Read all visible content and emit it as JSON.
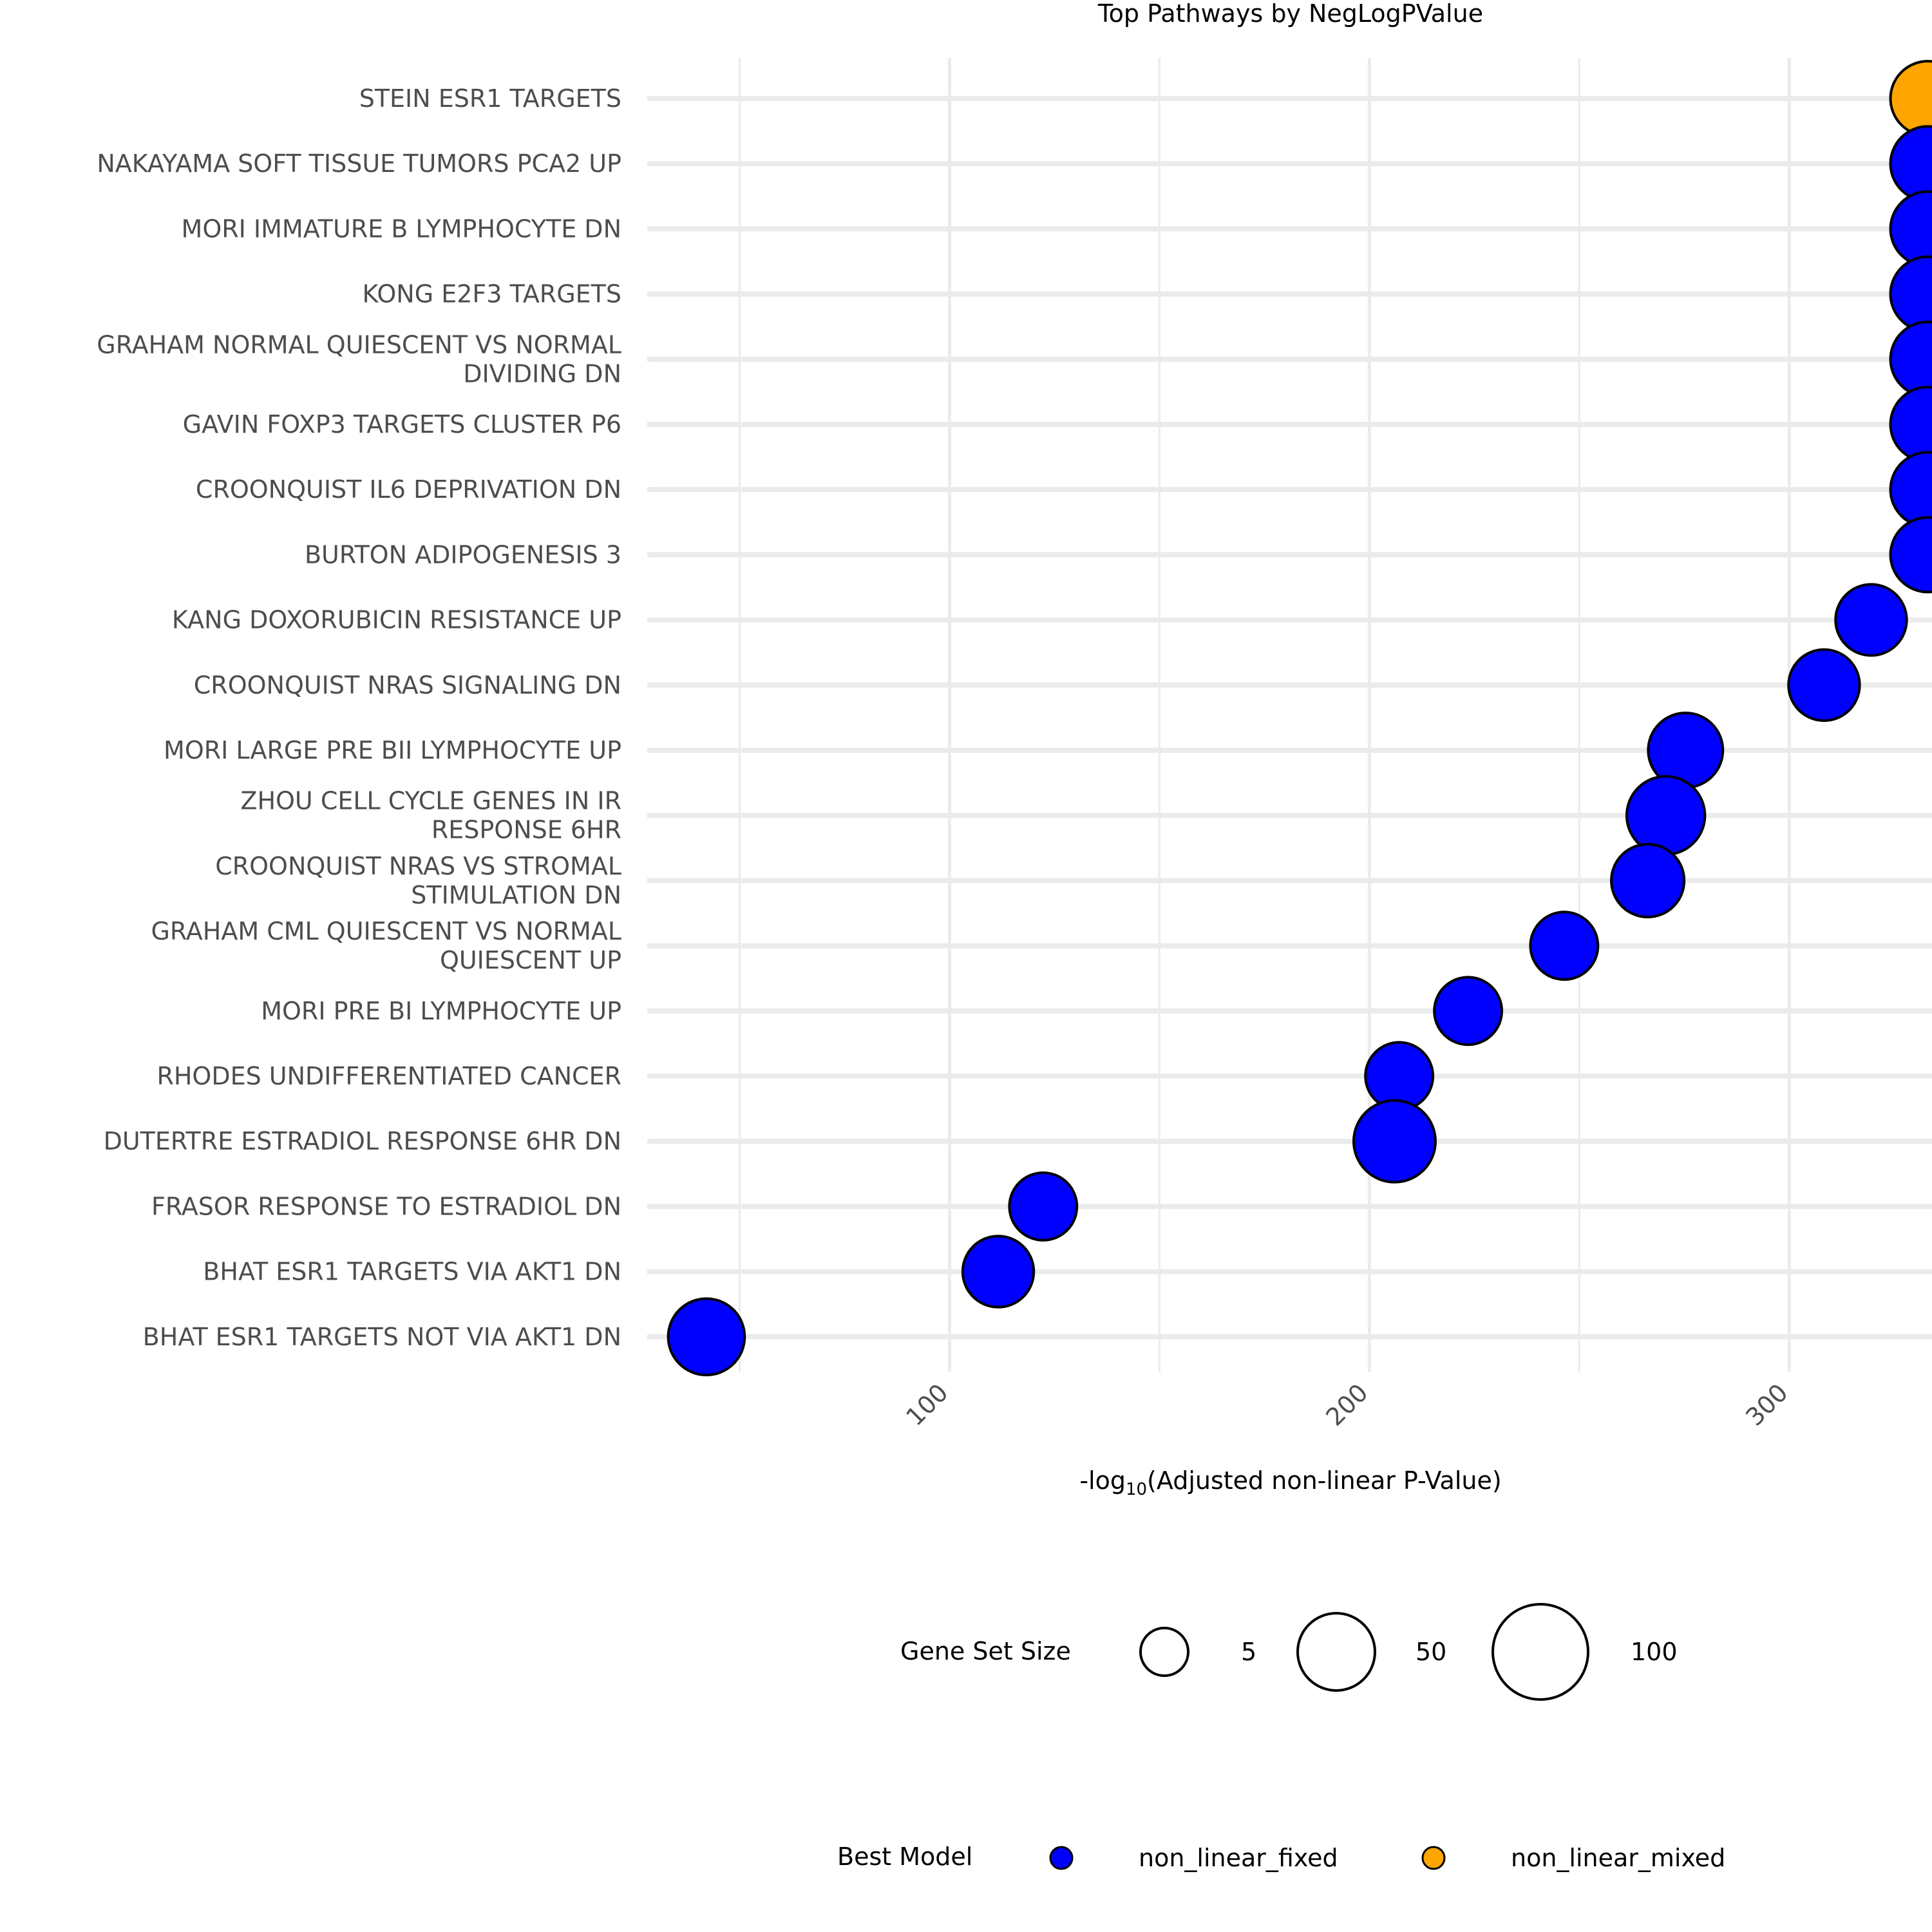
{
  "chart_data": {
    "type": "scatter",
    "title": "Top Pathways by NegLogPValue",
    "xlabel": {
      "prefix": "-log",
      "sub": "10",
      "suffix": "(Adjusted non-linear P-Value)"
    },
    "ylabel": "",
    "xlim": [
      28,
      334
    ],
    "xticks": [
      100,
      200,
      300
    ],
    "grid": true,
    "categories": [
      "STEIN ESR1 TARGETS",
      "NAKAYAMA SOFT TISSUE TUMORS PCA2 UP",
      "MORI IMMATURE B LYMPHOCYTE DN",
      "KONG E2F3 TARGETS",
      "GRAHAM NORMAL QUIESCENT VS NORMAL DIVIDING DN",
      "GAVIN FOXP3 TARGETS CLUSTER P6",
      "CROONQUIST IL6 DEPRIVATION DN",
      "BURTON ADIPOGENESIS 3",
      "KANG DOXORUBICIN RESISTANCE UP",
      "CROONQUIST NRAS SIGNALING DN",
      "MORI LARGE PRE BII LYMPHOCYTE UP",
      "ZHOU CELL CYCLE GENES IN IR RESPONSE 6HR",
      "CROONQUIST NRAS VS STROMAL STIMULATION DN",
      "GRAHAM CML QUIESCENT VS NORMAL QUIESCENT UP",
      "MORI PRE BI LYMPHOCYTE UP",
      "RHODES UNDIFFERENTIATED CANCER",
      "DUTERTRE ESTRADIOL RESPONSE 6HR DN",
      "FRASOR RESPONSE TO ESTRADIOL DN",
      "BHAT ESR1 TARGETS VIA AKT1 DN",
      "BHAT ESR1 TARGETS NOT VIA AKT1 DN"
    ],
    "category_lines": [
      [
        "STEIN ESR1 TARGETS"
      ],
      [
        "NAKAYAMA SOFT TISSUE TUMORS PCA2 UP"
      ],
      [
        "MORI IMMATURE B LYMPHOCYTE DN"
      ],
      [
        "KONG E2F3 TARGETS"
      ],
      [
        "GRAHAM NORMAL QUIESCENT VS NORMAL",
        "DIVIDING DN"
      ],
      [
        "GAVIN FOXP3 TARGETS CLUSTER P6"
      ],
      [
        "CROONQUIST IL6 DEPRIVATION DN"
      ],
      [
        "BURTON ADIPOGENESIS 3"
      ],
      [
        "KANG DOXORUBICIN RESISTANCE UP"
      ],
      [
        "CROONQUIST NRAS SIGNALING DN"
      ],
      [
        "MORI LARGE PRE BII LYMPHOCYTE UP"
      ],
      [
        "ZHOU CELL CYCLE GENES IN IR",
        "RESPONSE 6HR"
      ],
      [
        "CROONQUIST NRAS VS STROMAL",
        "STIMULATION DN"
      ],
      [
        "GRAHAM CML QUIESCENT VS NORMAL",
        "QUIESCENT UP"
      ],
      [
        "MORI PRE BI LYMPHOCYTE UP"
      ],
      [
        "RHODES UNDIFFERENTIATED CANCER"
      ],
      [
        "DUTERTRE ESTRADIOL RESPONSE 6HR DN"
      ],
      [
        "FRASOR RESPONSE TO ESTRADIOL DN"
      ],
      [
        "BHAT ESR1 TARGETS VIA AKT1 DN"
      ],
      [
        "BHAT ESR1 TARGETS NOT VIA AKT1 DN"
      ]
    ],
    "points": [
      {
        "pathway": "STEIN ESR1 TARGETS",
        "x": 333,
        "size": 42,
        "model": "non_linear_mixed"
      },
      {
        "pathway": "NAKAYAMA SOFT TISSUE TUMORS PCA2 UP",
        "x": 333,
        "size": 42,
        "model": "non_linear_fixed"
      },
      {
        "pathway": "MORI IMMATURE B LYMPHOCYTE DN",
        "x": 333,
        "size": 42,
        "model": "non_linear_fixed"
      },
      {
        "pathway": "KONG E2F3 TARGETS",
        "x": 333,
        "size": 42,
        "model": "non_linear_fixed"
      },
      {
        "pathway": "GRAHAM NORMAL QUIESCENT VS NORMAL DIVIDING DN",
        "x": 333,
        "size": 42,
        "model": "non_linear_fixed"
      },
      {
        "pathway": "GAVIN FOXP3 TARGETS CLUSTER P6",
        "x": 333,
        "size": 42,
        "model": "non_linear_fixed"
      },
      {
        "pathway": "CROONQUIST IL6 DEPRIVATION DN",
        "x": 333,
        "size": 42,
        "model": "non_linear_fixed"
      },
      {
        "pathway": "BURTON ADIPOGENESIS 3",
        "x": 333,
        "size": 42,
        "model": "non_linear_fixed"
      },
      {
        "pathway": "KANG DOXORUBICIN RESISTANCE UP",
        "x": 319.5,
        "size": 40,
        "model": "non_linear_fixed"
      },
      {
        "pathway": "CROONQUIST NRAS SIGNALING DN",
        "x": 308.3,
        "size": 40,
        "model": "non_linear_fixed"
      },
      {
        "pathway": "MORI LARGE PRE BII LYMPHOCYTE UP",
        "x": 275.3,
        "size": 42,
        "model": "non_linear_fixed"
      },
      {
        "pathway": "ZHOU CELL CYCLE GENES IN IR RESPONSE 6HR",
        "x": 270.6,
        "size": 44,
        "model": "non_linear_fixed"
      },
      {
        "pathway": "CROONQUIST NRAS VS STROMAL STIMULATION DN",
        "x": 266.3,
        "size": 41,
        "model": "non_linear_fixed"
      },
      {
        "pathway": "GRAHAM CML QUIESCENT VS NORMAL QUIESCENT UP",
        "x": 246.4,
        "size": 38,
        "model": "non_linear_fixed"
      },
      {
        "pathway": "MORI PRE BI LYMPHOCYTE UP",
        "x": 223.5,
        "size": 38,
        "model": "non_linear_fixed"
      },
      {
        "pathway": "RHODES UNDIFFERENTIATED CANCER",
        "x": 207.1,
        "size": 38,
        "model": "non_linear_fixed"
      },
      {
        "pathway": "DUTERTRE ESTRADIOL RESPONSE 6HR DN",
        "x": 206,
        "size": 46,
        "model": "non_linear_fixed"
      },
      {
        "pathway": "FRASOR RESPONSE TO ESTRADIOL DN",
        "x": 122.3,
        "size": 38,
        "model": "non_linear_fixed"
      },
      {
        "pathway": "BHAT ESR1 TARGETS VIA AKT1 DN",
        "x": 111.6,
        "size": 40,
        "model": "non_linear_fixed"
      },
      {
        "pathway": "BHAT ESR1 TARGETS NOT VIA AKT1 DN",
        "x": 42.1,
        "size": 43,
        "model": "non_linear_fixed"
      }
    ],
    "size_legend": {
      "title": "Gene Set Size",
      "breaks": [
        5,
        50,
        100
      ],
      "labels": [
        "5",
        "50",
        "100"
      ]
    },
    "color_legend": {
      "title": "Best Model",
      "entries": [
        {
          "label": "non_linear_fixed",
          "color": "#0000FF"
        },
        {
          "label": "non_linear_mixed",
          "color": "#FFA500"
        }
      ]
    },
    "legend_position": "bottom",
    "colors": {
      "grid": "#EBEBEB",
      "text": "#4D4D4D",
      "point_stroke": "#000000"
    }
  }
}
